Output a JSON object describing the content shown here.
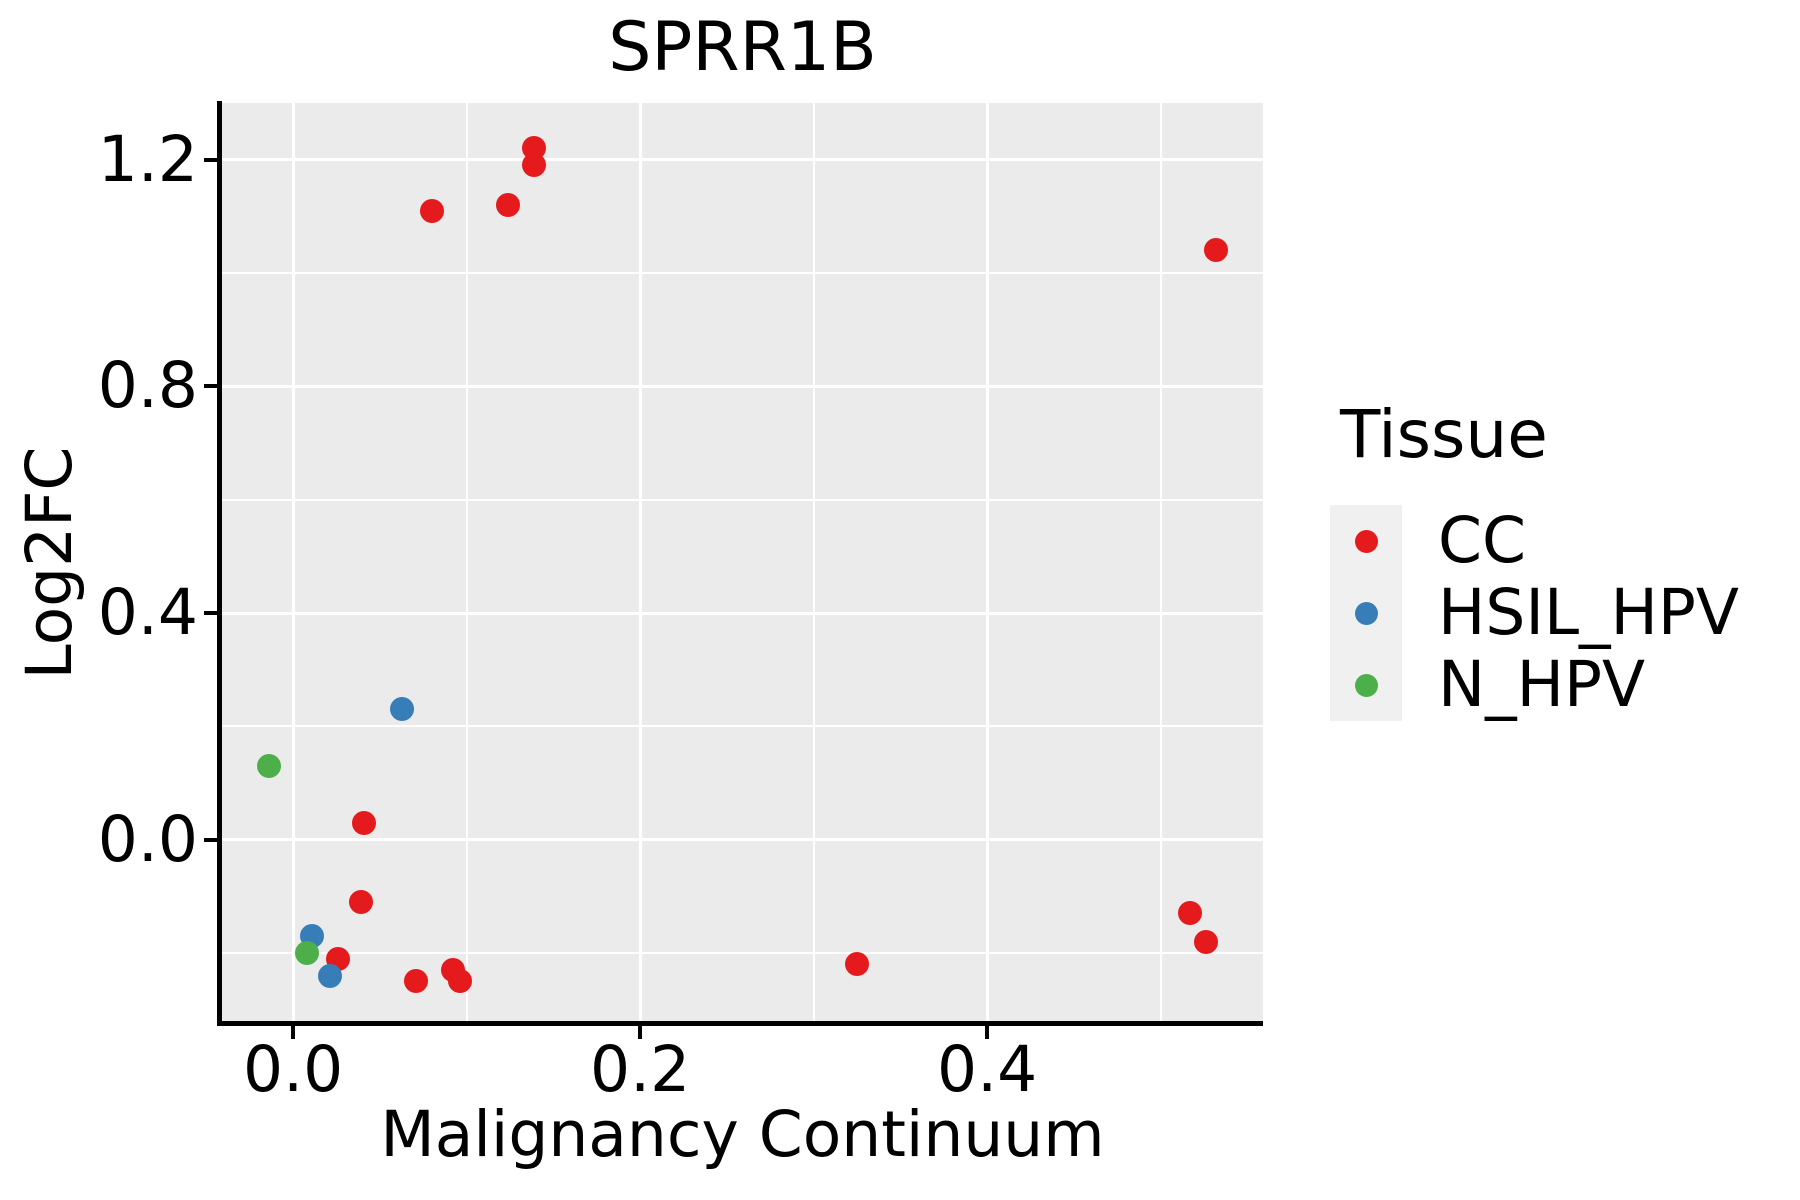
{
  "figure": {
    "title": "SPRR1B",
    "xlabel": "Malignancy Continuum",
    "ylabel": "Log2FC"
  },
  "legend": {
    "title": "Tissue",
    "items": [
      {
        "label": "CC",
        "color": "#E41A1C"
      },
      {
        "label": "HSIL_HPV",
        "color": "#377EB8"
      },
      {
        "label": "N_HPV",
        "color": "#4DAF4A"
      }
    ]
  },
  "chart_data": {
    "type": "scatter",
    "title": "SPRR1B",
    "xlabel": "Malignancy Continuum",
    "ylabel": "Log2FC",
    "xlim": [
      -0.041,
      0.559
    ],
    "ylim": [
      -0.32,
      1.3
    ],
    "x_major_ticks": [
      0.0,
      0.2,
      0.4
    ],
    "x_tick_labels": [
      "0.0",
      "0.2",
      "0.4"
    ],
    "x_minor_ticks": [
      0.1,
      0.3,
      0.5
    ],
    "y_major_ticks": [
      0.0,
      0.4,
      0.8,
      1.2
    ],
    "y_tick_labels": [
      "0.0",
      "0.4",
      "0.8",
      "1.2"
    ],
    "y_minor_ticks": [
      -0.2,
      0.2,
      0.6,
      1.0
    ],
    "grid": true,
    "panel_bg": "#EBEBEB",
    "grid_color": "#FFFFFF",
    "legend_position": "right",
    "legend_title": "Tissue",
    "series": [
      {
        "name": "CC",
        "color": "#E41A1C",
        "points": [
          [
            0.139,
            1.22
          ],
          [
            0.139,
            1.19
          ],
          [
            0.08,
            1.11
          ],
          [
            0.124,
            1.12
          ],
          [
            0.532,
            1.04
          ],
          [
            0.041,
            0.03
          ],
          [
            0.039,
            -0.11
          ],
          [
            0.026,
            -0.21
          ],
          [
            0.071,
            -0.25
          ],
          [
            0.092,
            -0.23
          ],
          [
            0.096,
            -0.25
          ],
          [
            0.325,
            -0.22
          ],
          [
            0.517,
            -0.13
          ],
          [
            0.526,
            -0.18
          ]
        ]
      },
      {
        "name": "HSIL_HPV",
        "color": "#377EB8",
        "points": [
          [
            0.063,
            0.23
          ],
          [
            0.011,
            -0.17
          ],
          [
            0.021,
            -0.24
          ]
        ]
      },
      {
        "name": "N_HPV",
        "color": "#4DAF4A",
        "points": [
          [
            -0.014,
            0.13
          ],
          [
            0.008,
            -0.2
          ]
        ]
      }
    ]
  }
}
